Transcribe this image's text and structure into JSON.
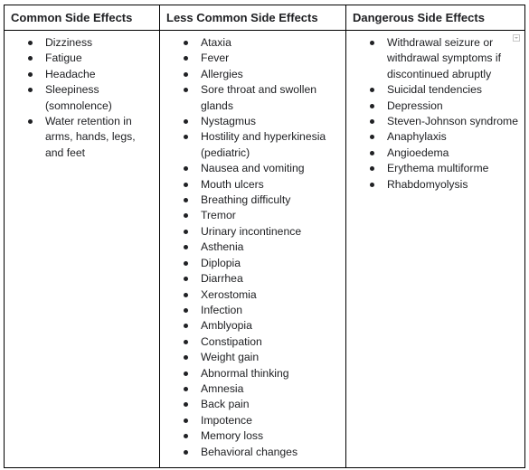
{
  "table": {
    "columns": [
      {
        "header": "Common Side Effects",
        "items": [
          "Dizziness",
          "Fatigue",
          "Headache",
          "Sleepiness (somnolence)",
          "Water retention in arms, hands, legs, and feet"
        ]
      },
      {
        "header": "Less Common Side Effects",
        "items": [
          "Ataxia",
          "Fever",
          "Allergies",
          "Sore throat and swollen glands",
          "Nystagmus",
          "Hostility and hyperkinesia (pediatric)",
          "Nausea and vomiting",
          "Mouth ulcers",
          "Breathing difficulty",
          "Tremor",
          "Urinary incontinence",
          "Asthenia",
          "Diplopia",
          "Diarrhea",
          "Xerostomia",
          "Infection",
          "Amblyopia",
          "Constipation",
          "Weight gain",
          "Abnormal thinking",
          "Amnesia",
          "Back pain",
          "Impotence",
          "Memory loss",
          "Behavioral changes"
        ]
      },
      {
        "header": "Dangerous Side Effects",
        "items": [
          "Withdrawal seizure or withdrawal symptoms if discontinued abruptly",
          "Suicidal tendencies",
          "Depression",
          "Steven-Johnson syndrome",
          "Anaphylaxis",
          "Angioedema",
          "Erythema multiforme",
          "Rhabdomyolysis"
        ]
      }
    ]
  }
}
